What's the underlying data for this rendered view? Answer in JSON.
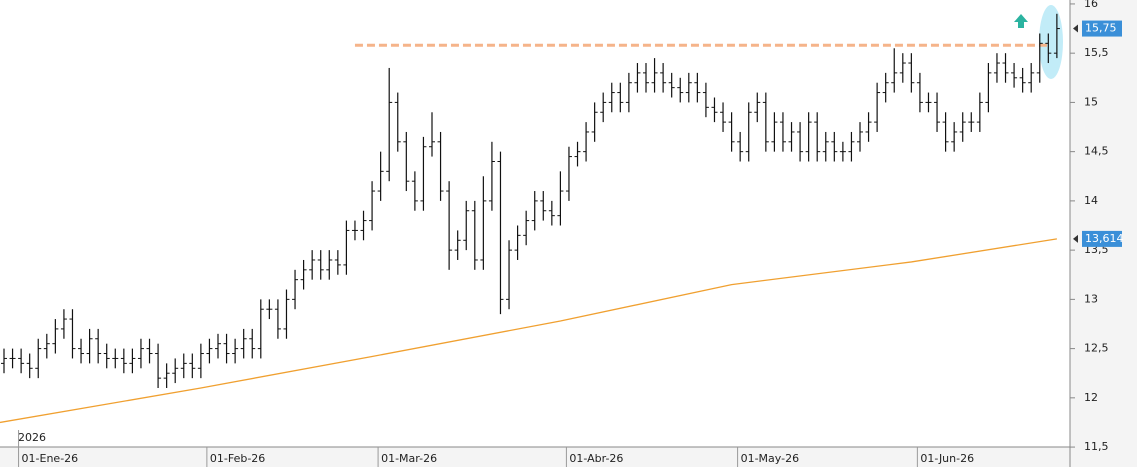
{
  "chart_data": {
    "type": "ohlc",
    "year_label": "2026",
    "categories": [
      null,
      "01-Ene-26",
      null,
      null,
      null,
      null,
      null,
      null,
      null,
      null,
      null,
      null,
      null,
      null,
      null,
      null,
      null,
      null,
      null,
      null,
      null,
      null,
      null,
      "01-Feb-26",
      null,
      null,
      null,
      null,
      null,
      null,
      null,
      null,
      null,
      null,
      null,
      null,
      null,
      null,
      null,
      null,
      null,
      null,
      null,
      "01-Mar-26",
      null,
      null,
      null,
      null,
      null,
      null,
      null,
      null,
      null,
      null,
      null,
      null,
      null,
      null,
      null,
      null,
      null,
      null,
      null,
      null,
      null,
      "01-Abr-26",
      null,
      null,
      null,
      null,
      null,
      null,
      null,
      null,
      null,
      null,
      null,
      null,
      null,
      null,
      null,
      null,
      null,
      null,
      null,
      "01-May-26",
      null,
      null,
      null,
      null,
      null,
      null,
      null,
      null,
      null,
      null,
      null,
      null,
      null,
      null,
      null,
      null,
      null,
      null,
      null,
      null,
      "01-Jun-26",
      null,
      null,
      null,
      null,
      null,
      null,
      null,
      null,
      null,
      null,
      null,
      null,
      null,
      null,
      null,
      null,
      null
    ],
    "open": [
      12.35,
      12.4,
      12.4,
      12.35,
      12.3,
      12.5,
      12.55,
      12.7,
      12.8,
      12.5,
      12.45,
      12.6,
      12.45,
      12.4,
      12.4,
      12.35,
      12.4,
      12.5,
      12.45,
      12.2,
      12.25,
      12.3,
      12.35,
      12.3,
      12.45,
      12.5,
      12.55,
      12.45,
      12.5,
      12.6,
      12.5,
      12.9,
      12.9,
      12.7,
      13.0,
      13.2,
      13.3,
      13.4,
      13.3,
      13.4,
      13.35,
      13.7,
      13.7,
      13.8,
      14.1,
      14.3,
      15.0,
      14.6,
      14.2,
      14.0,
      14.55,
      14.6,
      14.1,
      13.5,
      13.6,
      13.9,
      13.4,
      14.0,
      14.4,
      13.0,
      13.5,
      13.65,
      13.8,
      14.0,
      13.9,
      13.85,
      14.1,
      14.45,
      14.5,
      14.7,
      14.9,
      15.0,
      15.1,
      15.0,
      15.2,
      15.3,
      15.2,
      15.3,
      15.2,
      15.15,
      15.1,
      15.2,
      15.1,
      14.95,
      14.9,
      14.8,
      14.6,
      14.5,
      14.9,
      15.0,
      14.6,
      14.8,
      14.6,
      14.7,
      14.5,
      14.8,
      14.5,
      14.6,
      14.5,
      14.5,
      14.6,
      14.7,
      14.8,
      15.1,
      15.2,
      15.3,
      15.4,
      15.2,
      15.0,
      15.0,
      14.8,
      14.6,
      14.7,
      14.8,
      14.8,
      15.0,
      15.3,
      15.4,
      15.3,
      15.25,
      15.2,
      15.3,
      15.6,
      15.5
    ],
    "high": [
      12.5,
      12.5,
      12.5,
      12.45,
      12.6,
      12.65,
      12.8,
      12.9,
      12.9,
      12.6,
      12.7,
      12.7,
      12.55,
      12.5,
      12.5,
      12.5,
      12.6,
      12.6,
      12.55,
      12.35,
      12.4,
      12.45,
      12.45,
      12.55,
      12.6,
      12.65,
      12.65,
      12.6,
      12.7,
      12.7,
      13.0,
      13.0,
      13.0,
      13.1,
      13.3,
      13.4,
      13.5,
      13.5,
      13.5,
      13.5,
      13.8,
      13.8,
      13.9,
      14.2,
      14.5,
      15.35,
      15.1,
      14.7,
      14.3,
      14.65,
      14.9,
      14.7,
      14.2,
      13.7,
      14.0,
      14.0,
      14.25,
      14.6,
      14.5,
      13.6,
      13.75,
      13.9,
      14.1,
      14.1,
      14.0,
      14.3,
      14.55,
      14.6,
      14.8,
      15.0,
      15.1,
      15.2,
      15.2,
      15.3,
      15.4,
      15.4,
      15.45,
      15.4,
      15.3,
      15.25,
      15.3,
      15.3,
      15.2,
      15.05,
      15.0,
      14.9,
      14.7,
      15.0,
      15.1,
      15.1,
      14.9,
      14.9,
      14.8,
      14.8,
      14.9,
      14.9,
      14.7,
      14.7,
      14.6,
      14.7,
      14.8,
      14.9,
      15.2,
      15.3,
      15.55,
      15.5,
      15.5,
      15.3,
      15.1,
      15.1,
      14.9,
      14.8,
      14.9,
      14.9,
      15.1,
      15.4,
      15.5,
      15.5,
      15.4,
      15.35,
      15.4,
      15.7,
      15.7,
      15.9
    ],
    "low": [
      12.25,
      12.3,
      12.25,
      12.2,
      12.2,
      12.4,
      12.45,
      12.6,
      12.4,
      12.35,
      12.35,
      12.35,
      12.3,
      12.3,
      12.25,
      12.25,
      12.3,
      12.35,
      12.1,
      12.1,
      12.15,
      12.2,
      12.2,
      12.2,
      12.35,
      12.4,
      12.35,
      12.35,
      12.4,
      12.4,
      12.4,
      12.8,
      12.6,
      12.6,
      12.9,
      13.1,
      13.2,
      13.2,
      13.2,
      13.25,
      13.25,
      13.6,
      13.6,
      13.7,
      14.0,
      14.2,
      14.5,
      14.1,
      13.9,
      13.9,
      14.45,
      14.0,
      13.3,
      13.4,
      13.5,
      13.3,
      13.3,
      13.9,
      12.85,
      12.9,
      13.4,
      13.55,
      13.7,
      13.8,
      13.75,
      13.75,
      14.0,
      14.35,
      14.4,
      14.6,
      14.8,
      14.9,
      14.9,
      14.9,
      15.1,
      15.1,
      15.1,
      15.1,
      15.05,
      15.0,
      15.0,
      15.0,
      14.85,
      14.8,
      14.7,
      14.5,
      14.4,
      14.4,
      14.8,
      14.5,
      14.5,
      14.5,
      14.5,
      14.4,
      14.4,
      14.4,
      14.4,
      14.4,
      14.4,
      14.4,
      14.5,
      14.6,
      14.7,
      15.0,
      15.1,
      15.2,
      15.1,
      14.9,
      14.9,
      14.7,
      14.5,
      14.5,
      14.6,
      14.7,
      14.7,
      14.9,
      15.2,
      15.2,
      15.15,
      15.1,
      15.1,
      15.2,
      15.4,
      15.45
    ],
    "close": [
      12.4,
      12.4,
      12.35,
      12.3,
      12.5,
      12.55,
      12.7,
      12.8,
      12.5,
      12.45,
      12.6,
      12.45,
      12.4,
      12.4,
      12.35,
      12.4,
      12.5,
      12.45,
      12.2,
      12.25,
      12.3,
      12.35,
      12.3,
      12.45,
      12.5,
      12.55,
      12.45,
      12.5,
      12.6,
      12.5,
      12.9,
      12.9,
      12.7,
      13.0,
      13.2,
      13.3,
      13.4,
      13.3,
      13.4,
      13.35,
      13.7,
      13.7,
      13.8,
      14.1,
      14.3,
      15.0,
      14.6,
      14.2,
      14.0,
      14.55,
      14.6,
      14.1,
      13.5,
      13.6,
      13.9,
      13.4,
      14.0,
      14.4,
      13.0,
      13.5,
      13.65,
      13.8,
      14.0,
      13.9,
      13.85,
      14.1,
      14.45,
      14.5,
      14.7,
      14.9,
      15.0,
      15.1,
      15.0,
      15.2,
      15.3,
      15.2,
      15.3,
      15.2,
      15.15,
      15.1,
      15.2,
      15.1,
      14.95,
      14.9,
      14.8,
      14.6,
      14.5,
      14.9,
      15.0,
      14.6,
      14.8,
      14.6,
      14.7,
      14.5,
      14.8,
      14.5,
      14.6,
      14.5,
      14.5,
      14.6,
      14.7,
      14.8,
      15.1,
      15.2,
      15.3,
      15.4,
      15.2,
      15.0,
      15.0,
      14.8,
      14.6,
      14.7,
      14.8,
      14.8,
      15.0,
      15.3,
      15.4,
      15.3,
      15.25,
      15.2,
      15.3,
      15.6,
      15.5,
      15.75
    ],
    "bar_color": "#111111",
    "moving_average": {
      "color": "#f0a030",
      "x": [
        0,
        23,
        43,
        65,
        85,
        106,
        123
      ],
      "values": [
        11.75,
        12.1,
        12.42,
        12.78,
        13.15,
        13.38,
        13.614
      ]
    },
    "resistance": {
      "color": "#f5b48a",
      "value": 15.58,
      "x": [
        41,
        122
      ]
    },
    "price_labels": [
      {
        "value": 15.75,
        "label": "15,75"
      },
      {
        "value": 13.614,
        "label": "13,614"
      }
    ],
    "price_label_color": "#3a8fd8",
    "ylim": [
      11.45,
      16.04
    ],
    "yticks": [
      {
        "value": 11.5,
        "label": "11,5"
      },
      12,
      {
        "value": 12.5,
        "label": "12,5"
      },
      13,
      {
        "value": 13.5,
        "label": "13,5"
      },
      14,
      {
        "value": 14.5,
        "label": "14,5"
      },
      15,
      {
        "value": 15.5,
        "label": "15,5"
      },
      16
    ]
  }
}
